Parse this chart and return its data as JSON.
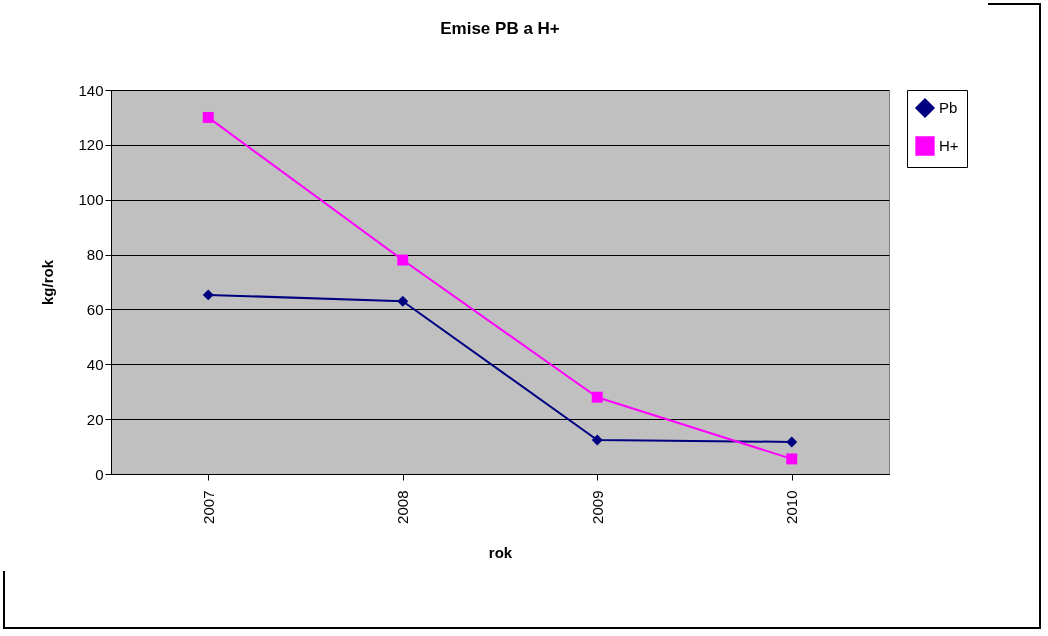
{
  "chart_data": {
    "type": "line",
    "title": "Emise PB a H+",
    "xlabel": "rok",
    "ylabel": "kg/rok",
    "categories": [
      "2007",
      "2008",
      "2009",
      "2010"
    ],
    "series": [
      {
        "name": "Pb",
        "color": "#000080",
        "marker": "diamond",
        "values": [
          65.3,
          63,
          12.4,
          11.7
        ]
      },
      {
        "name": "H+",
        "color": "#ff00ff",
        "marker": "square",
        "values": [
          130,
          78,
          28,
          5.5
        ]
      }
    ],
    "ylim": [
      0,
      140
    ],
    "yticks": [
      0,
      20,
      40,
      60,
      80,
      100,
      120,
      140
    ],
    "grid": "y",
    "legend": "right"
  }
}
